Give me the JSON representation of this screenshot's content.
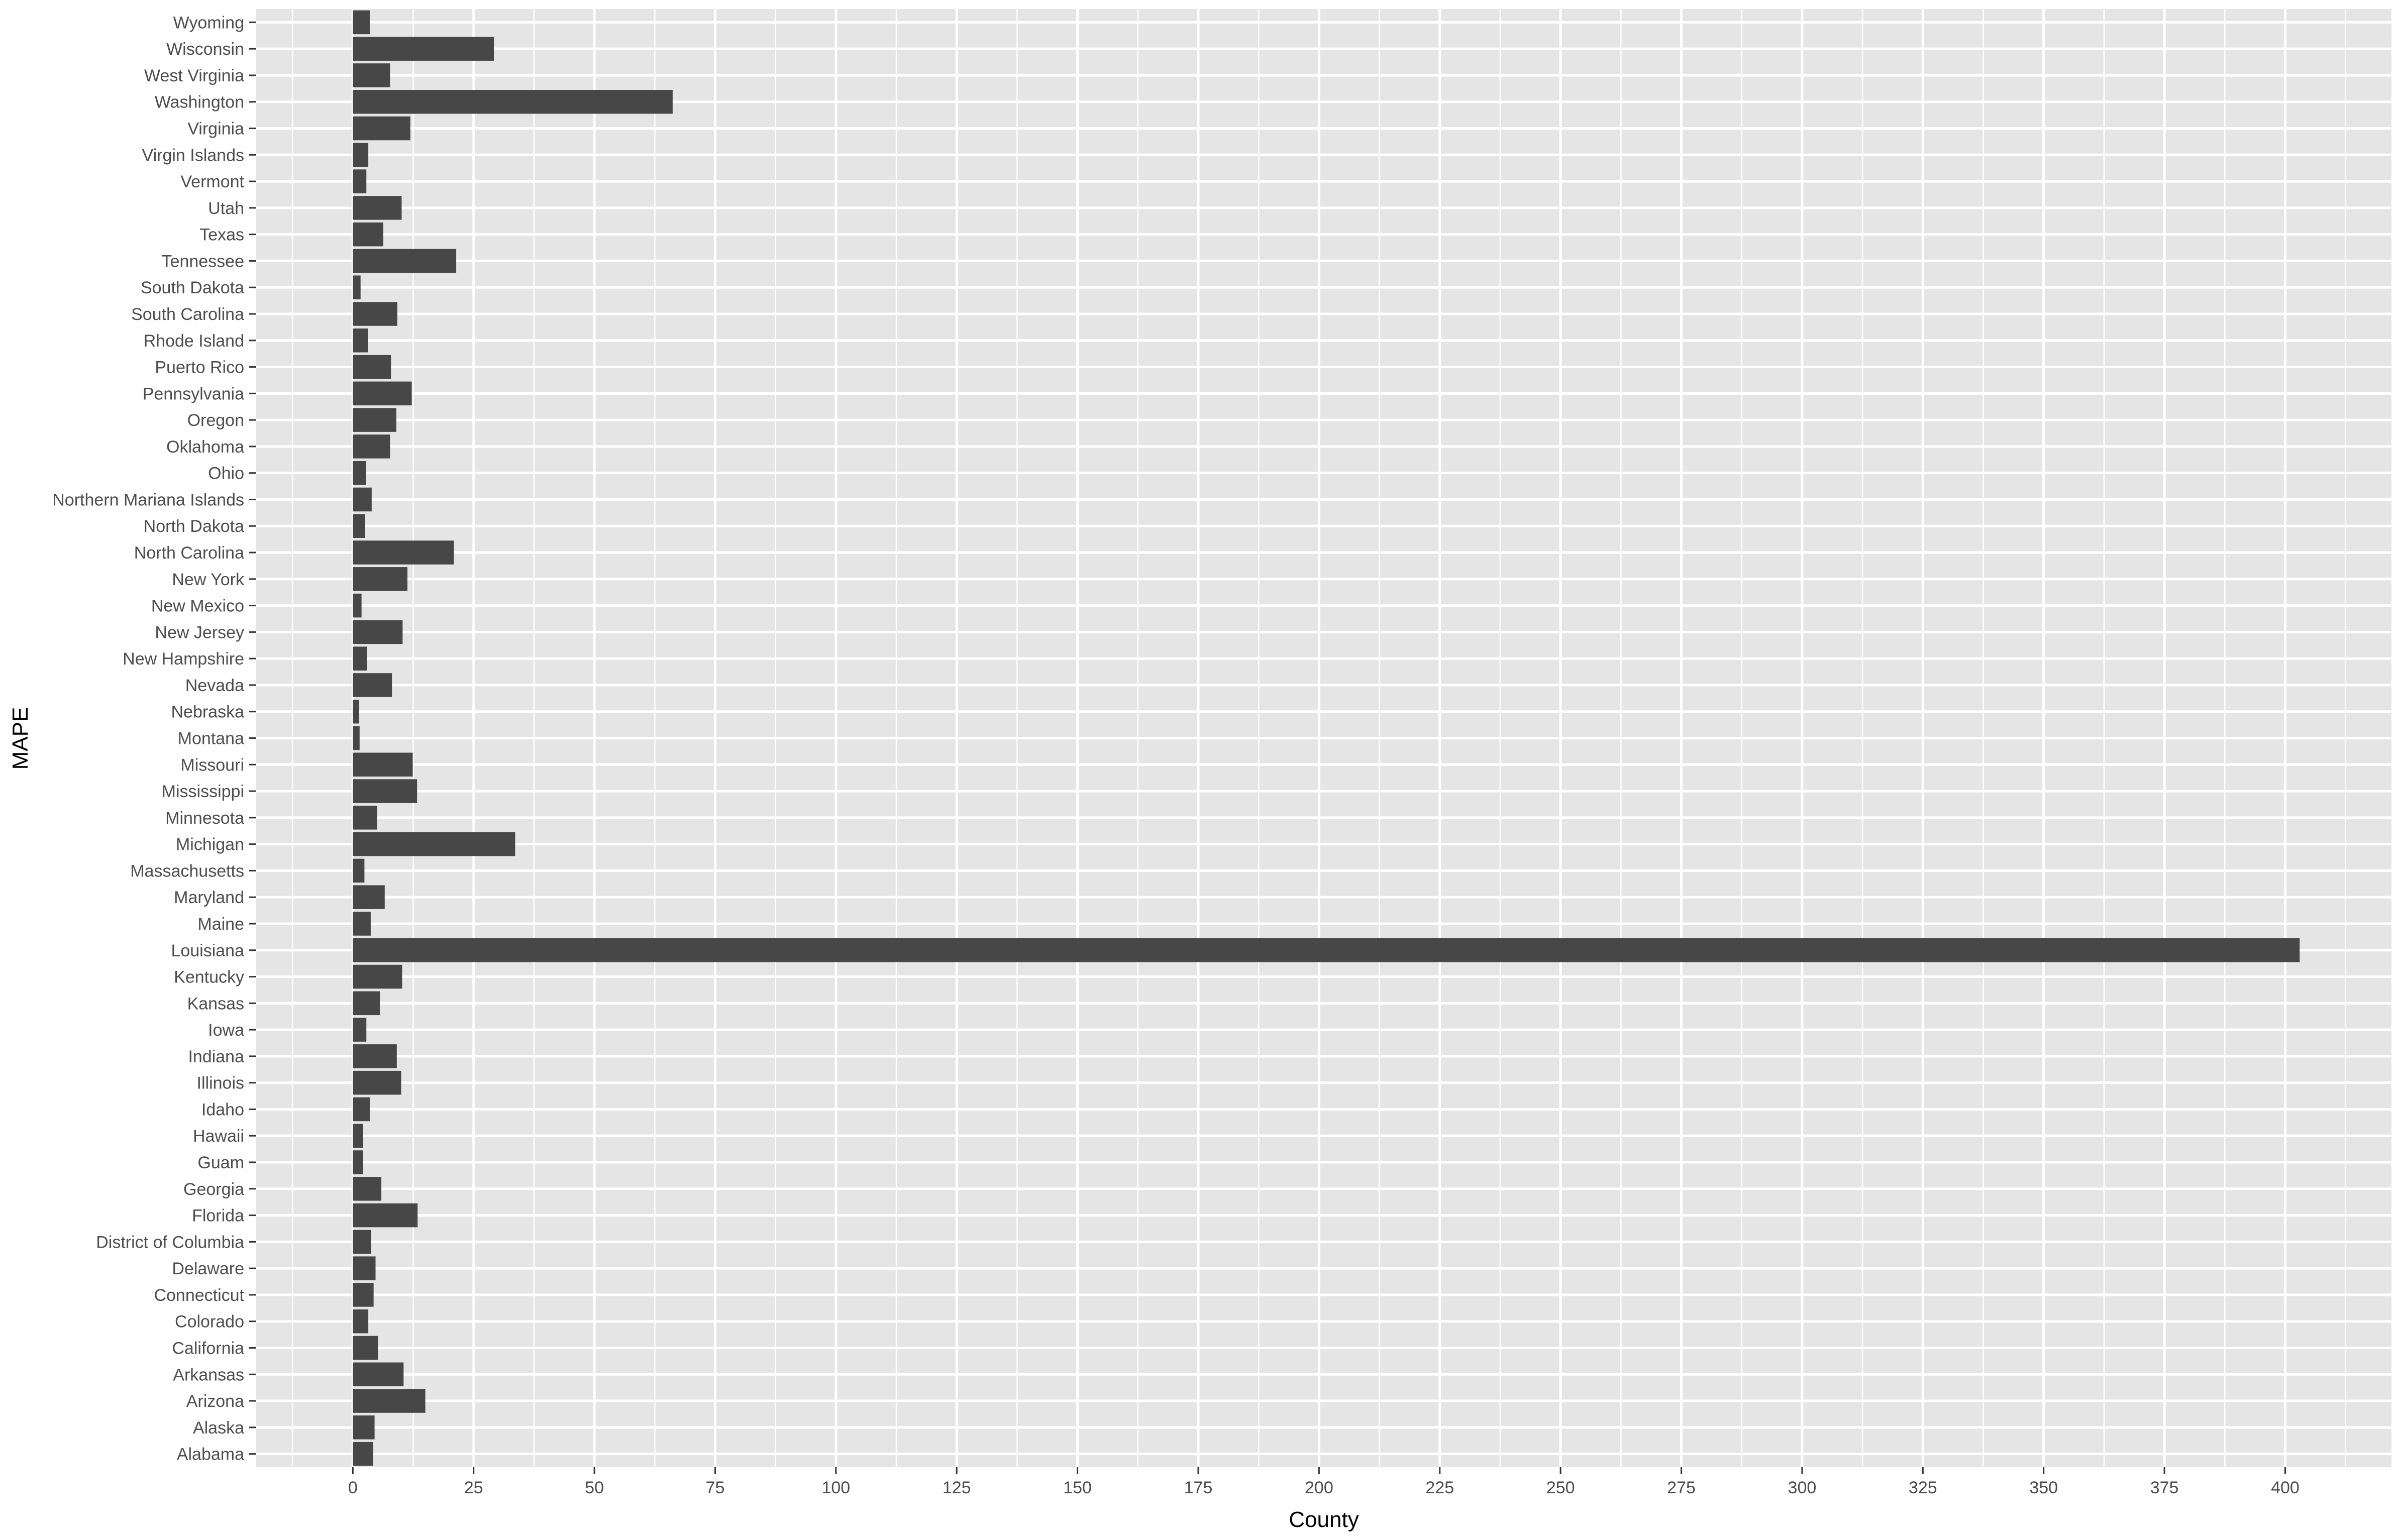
{
  "chart_data": {
    "type": "bar",
    "orientation": "horizontal",
    "title": "",
    "xlabel": "County",
    "ylabel": "MAPE",
    "xlim": [
      -20,
      422
    ],
    "x_ticks": [
      0,
      25,
      50,
      75,
      100,
      125,
      150,
      175,
      200,
      225,
      250,
      275,
      300,
      325,
      350,
      375,
      400
    ],
    "grid": true,
    "legend": "none",
    "colors": {
      "panel": "#E5E5E5",
      "grid": "#FFFFFF",
      "bar": "#474747",
      "text": "#4D4D4D"
    },
    "categories": [
      "Alabama",
      "Alaska",
      "Arizona",
      "Arkansas",
      "California",
      "Colorado",
      "Connecticut",
      "Delaware",
      "District of Columbia",
      "Florida",
      "Georgia",
      "Guam",
      "Hawaii",
      "Idaho",
      "Illinois",
      "Indiana",
      "Iowa",
      "Kansas",
      "Kentucky",
      "Louisiana",
      "Maine",
      "Maryland",
      "Massachusetts",
      "Michigan",
      "Minnesota",
      "Mississippi",
      "Missouri",
      "Montana",
      "Nebraska",
      "Nevada",
      "New Hampshire",
      "New Jersey",
      "New Mexico",
      "New York",
      "North Carolina",
      "North Dakota",
      "Northern Mariana Islands",
      "Ohio",
      "Oklahoma",
      "Oregon",
      "Pennsylvania",
      "Puerto Rico",
      "Rhode Island",
      "South Carolina",
      "South Dakota",
      "Tennessee",
      "Texas",
      "Utah",
      "Vermont",
      "Virgin Islands",
      "Virginia",
      "Washington",
      "West Virginia",
      "Wisconsin",
      "Wyoming"
    ],
    "values": [
      4.2,
      4.5,
      15.0,
      10.5,
      5.2,
      3.2,
      4.3,
      4.7,
      3.8,
      13.4,
      5.9,
      2.1,
      2.1,
      3.5,
      10.0,
      9.1,
      2.8,
      5.6,
      10.2,
      403.0,
      3.7,
      6.6,
      2.4,
      33.6,
      5.0,
      13.3,
      12.4,
      1.4,
      1.3,
      8.1,
      2.9,
      10.3,
      1.8,
      11.3,
      20.9,
      2.5,
      3.9,
      2.7,
      7.7,
      9.0,
      12.2,
      7.9,
      3.1,
      9.2,
      1.6,
      21.4,
      6.3,
      10.1,
      2.8,
      3.2,
      11.9,
      66.2,
      7.7,
      29.2,
      3.5
    ]
  }
}
